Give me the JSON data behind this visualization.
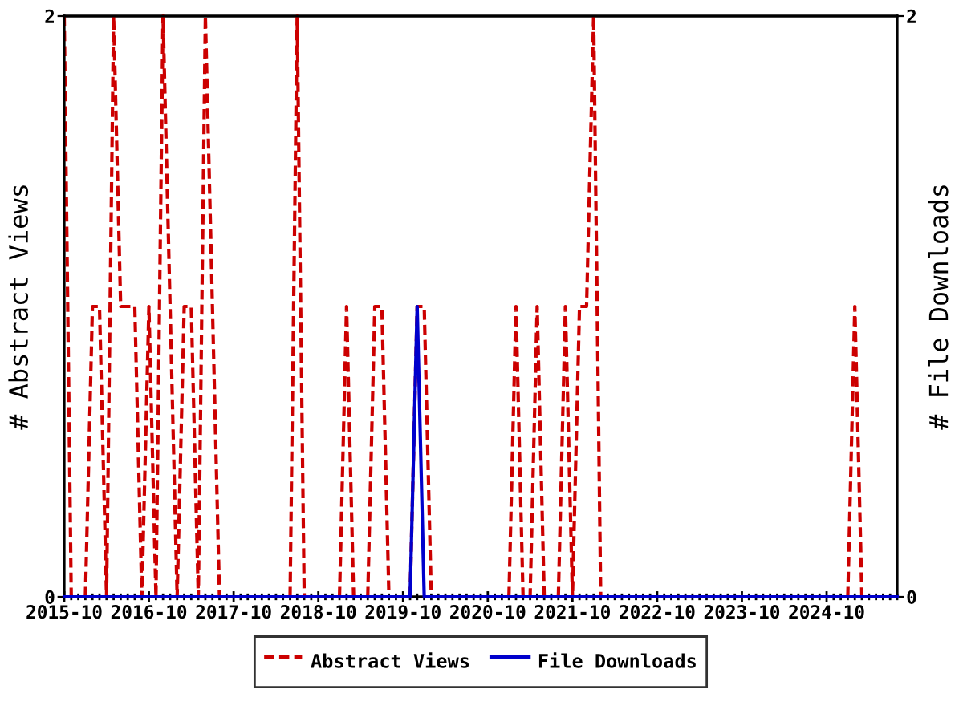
{
  "chart_data": {
    "type": "line",
    "x": [
      "2015-10",
      "2015-11",
      "2015-12",
      "2016-01",
      "2016-02",
      "2016-03",
      "2016-04",
      "2016-05",
      "2016-06",
      "2016-07",
      "2016-08",
      "2016-09",
      "2016-10",
      "2016-11",
      "2016-12",
      "2017-01",
      "2017-02",
      "2017-03",
      "2017-04",
      "2017-05",
      "2017-06",
      "2017-07",
      "2017-08",
      "2017-09",
      "2017-10",
      "2017-11",
      "2017-12",
      "2018-01",
      "2018-02",
      "2018-03",
      "2018-04",
      "2018-05",
      "2018-06",
      "2018-07",
      "2018-08",
      "2018-09",
      "2018-10",
      "2018-11",
      "2018-12",
      "2019-01",
      "2019-02",
      "2019-03",
      "2019-04",
      "2019-05",
      "2019-06",
      "2019-07",
      "2019-08",
      "2019-09",
      "2019-10",
      "2019-11",
      "2019-12",
      "2020-01",
      "2020-02",
      "2020-03",
      "2020-04",
      "2020-05",
      "2020-06",
      "2020-07",
      "2020-08",
      "2020-09",
      "2020-10",
      "2020-11",
      "2020-12",
      "2021-01",
      "2021-02",
      "2021-03",
      "2021-04",
      "2021-05",
      "2021-06",
      "2021-07",
      "2021-08",
      "2021-09",
      "2021-10",
      "2021-11",
      "2021-12",
      "2022-01",
      "2022-02",
      "2022-03",
      "2022-04",
      "2022-05",
      "2022-06",
      "2022-07",
      "2022-08",
      "2022-09",
      "2022-10",
      "2022-11",
      "2022-12",
      "2023-01",
      "2023-02",
      "2023-03",
      "2023-04",
      "2023-05",
      "2023-06",
      "2023-07",
      "2023-08",
      "2023-09",
      "2023-10",
      "2023-11",
      "2023-12",
      "2024-01",
      "2024-02",
      "2024-03",
      "2024-04",
      "2024-05",
      "2024-06",
      "2024-07",
      "2024-08",
      "2024-09",
      "2024-10",
      "2024-11",
      "2024-12",
      "2025-01",
      "2025-02",
      "2025-03",
      "2025-04",
      "2025-05",
      "2025-06",
      "2025-07",
      "2025-08"
    ],
    "series": [
      {
        "name": "Abstract Views",
        "color": "#cc0000",
        "line_style": "dashed",
        "values": [
          2,
          0,
          null,
          0,
          1,
          1,
          0,
          2,
          1,
          1,
          1,
          0,
          1,
          0,
          2,
          1,
          0,
          1,
          1,
          0,
          2,
          1,
          0,
          null,
          null,
          null,
          null,
          null,
          null,
          null,
          null,
          null,
          0,
          2,
          0,
          null,
          null,
          null,
          null,
          0,
          1,
          0,
          null,
          0,
          1,
          1,
          0,
          null,
          null,
          0,
          1,
          1,
          0,
          null,
          null,
          null,
          null,
          null,
          null,
          null,
          null,
          null,
          null,
          0,
          1,
          0,
          0,
          1,
          0,
          null,
          0,
          1,
          0,
          1,
          1,
          2,
          0,
          null,
          null,
          null,
          null,
          null,
          null,
          null,
          null,
          null,
          null,
          null,
          null,
          null,
          null,
          null,
          null,
          null,
          null,
          null,
          null,
          null,
          null,
          null,
          null,
          null,
          null,
          null,
          null,
          null,
          null,
          null,
          null,
          null,
          null,
          0,
          1,
          0,
          null,
          null,
          null,
          null,
          null
        ]
      },
      {
        "name": "File Downloads",
        "color": "#0000cc",
        "line_style": "solid",
        "axis": "y2",
        "values": [
          0,
          0,
          0,
          0,
          0,
          0,
          0,
          0,
          0,
          0,
          0,
          0,
          0,
          0,
          0,
          0,
          0,
          0,
          0,
          0,
          0,
          0,
          0,
          0,
          0,
          0,
          0,
          0,
          0,
          0,
          0,
          0,
          0,
          0,
          0,
          0,
          0,
          0,
          0,
          0,
          0,
          0,
          0,
          0,
          0,
          0,
          0,
          0,
          0,
          0,
          1,
          0,
          0,
          0,
          0,
          0,
          0,
          0,
          0,
          0,
          0,
          0,
          0,
          0,
          0,
          0,
          0,
          0,
          0,
          0,
          0,
          0,
          0,
          0,
          0,
          0,
          0,
          0,
          0,
          0,
          0,
          0,
          0,
          0,
          0,
          0,
          0,
          0,
          0,
          0,
          0,
          0,
          0,
          0,
          0,
          0,
          0,
          0,
          0,
          0,
          0,
          0,
          0,
          0,
          0,
          0,
          0,
          0,
          0,
          0,
          0,
          0,
          0,
          0,
          0,
          0,
          0,
          0,
          0
        ]
      }
    ],
    "ylabel": "# Abstract Views",
    "y2label": "# File Downloads",
    "xlim": [
      "2015-10",
      "2025-08"
    ],
    "xticks": [
      "2015-10",
      "2016-10",
      "2017-10",
      "2018-10",
      "2019-10",
      "2020-10",
      "2021-10",
      "2022-10",
      "2023-10",
      "2024-10"
    ],
    "ylim": [
      0,
      2
    ],
    "yticks": [
      0,
      2
    ],
    "y2lim": [
      0,
      2
    ],
    "y2ticks": [
      0,
      2
    ],
    "legend": "bottom"
  }
}
